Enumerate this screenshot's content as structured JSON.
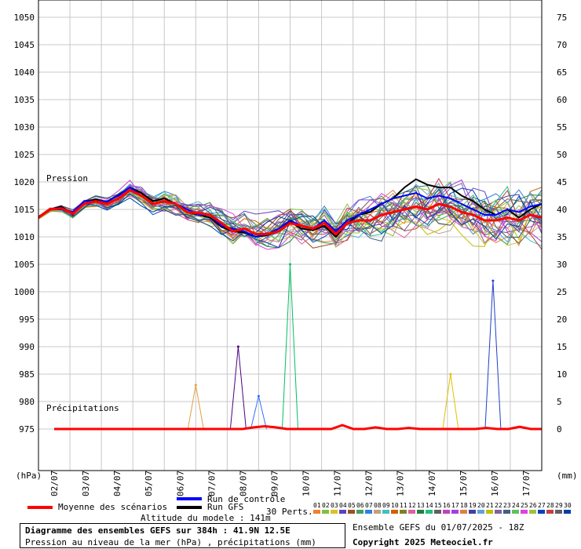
{
  "chart_data": {
    "type": "line",
    "left_axis": {
      "label": "(hPa)",
      "ticks": [
        1050,
        1045,
        1040,
        1035,
        1030,
        1025,
        1020,
        1015,
        1010,
        1005,
        1000,
        995,
        990,
        985,
        980,
        975
      ]
    },
    "right_axis": {
      "label": "(mm)",
      "ticks": [
        75,
        70,
        65,
        60,
        55,
        50,
        45,
        40,
        35,
        30,
        25,
        20,
        15,
        10,
        5,
        0
      ]
    },
    "x_dates": [
      "02/07",
      "03/07",
      "04/07",
      "05/07",
      "06/07",
      "07/07",
      "08/07",
      "09/07",
      "10/07",
      "11/07",
      "12/07",
      "13/07",
      "14/07",
      "15/07",
      "16/07",
      "17/07"
    ],
    "pressure_label": "Pression",
    "precip_label": "Précipitations",
    "mean_pressure": [
      1013.5,
      1015,
      1015.2,
      1014.2,
      1016,
      1016.5,
      1016,
      1017,
      1018.5,
      1017.5,
      1016,
      1016.5,
      1016,
      1014.5,
      1014.3,
      1014,
      1012.5,
      1011,
      1011.5,
      1010.5,
      1010.5,
      1011,
      1012.5,
      1012,
      1011.5,
      1012.5,
      1010.5,
      1012.5,
      1013,
      1013,
      1014,
      1014.5,
      1015,
      1015.5,
      1015,
      1016,
      1015.5,
      1014.5,
      1014,
      1013,
      1013,
      1013.5,
      1013,
      1014,
      1013.5
    ],
    "control_pressure": [
      1013.5,
      1015,
      1015,
      1014.5,
      1016.5,
      1016.5,
      1016.5,
      1017.5,
      1019,
      1017.5,
      1016,
      1016.5,
      1016,
      1015,
      1014,
      1014,
      1012,
      1011.5,
      1011,
      1010,
      1010.5,
      1011.5,
      1013,
      1012,
      1011.5,
      1013,
      1011,
      1013,
      1014,
      1015,
      1016,
      1017,
      1017.5,
      1018,
      1017,
      1017.5,
      1017,
      1016,
      1015,
      1014,
      1014,
      1015,
      1014.5,
      1015.5,
      1016
    ],
    "gfs_pressure": [
      1013.5,
      1015,
      1015.5,
      1014,
      1016.5,
      1016.8,
      1016.4,
      1017.6,
      1019,
      1018,
      1016.5,
      1017,
      1016,
      1014.5,
      1014,
      1013.5,
      1011.8,
      1011,
      1010.8,
      1010,
      1010.3,
      1011,
      1012.8,
      1011.5,
      1011.2,
      1012,
      1010,
      1012.5,
      1014,
      1014.5,
      1016,
      1017,
      1019,
      1020.5,
      1019.5,
      1019,
      1019,
      1017.5,
      1016.5,
      1015,
      1014,
      1015,
      1013.5,
      1015,
      1016
    ],
    "ensemble_ranges": {
      "pressure_min": 1004,
      "pressure_max": 1021
    },
    "precip_mean": [
      0,
      0,
      0,
      0,
      0,
      0,
      0,
      0,
      0,
      0,
      0,
      0,
      0,
      0,
      0,
      0,
      0,
      0,
      0.3,
      0.5,
      0.3,
      0,
      0,
      0,
      0,
      0,
      0.7,
      0,
      0,
      0.3,
      0,
      0,
      0.2,
      0,
      0,
      0,
      0,
      0,
      0,
      0.2,
      0,
      0,
      0.4,
      0,
      0
    ],
    "precip_peaks": [
      {
        "x_day": 6.35,
        "value": 15,
        "color": "#4b0082"
      },
      {
        "x_day": 8.0,
        "value": 30,
        "color": "#00c060"
      },
      {
        "x_day": 14.45,
        "value": 27,
        "color": "#1e40c8"
      },
      {
        "x_day": 13.1,
        "value": 10,
        "color": "#e0c000"
      },
      {
        "x_day": 5.0,
        "value": 8,
        "color": "#e0a040"
      },
      {
        "x_day": 7.0,
        "value": 6,
        "color": "#3070ff"
      }
    ],
    "xlim_days": [
      0,
      16
    ],
    "ylim_hpa": [
      970,
      1052
    ]
  },
  "legend": {
    "mean_label": "Moyenne des scénarios",
    "control_label": "Run de contrôle",
    "gfs_label": "Run GFS",
    "perts_label": "30 Perts.",
    "altitude": "Altitude du modele : 141m",
    "mean_color": "#ff0000",
    "control_color": "#0000ff",
    "gfs_color": "#000000",
    "pert_numbers": [
      "01",
      "02",
      "03",
      "04",
      "05",
      "06",
      "07",
      "08",
      "09",
      "10",
      "11",
      "12",
      "13",
      "14",
      "15",
      "16",
      "17",
      "18",
      "19",
      "20",
      "21",
      "22",
      "23",
      "24",
      "25",
      "26",
      "27",
      "28",
      "29",
      "30"
    ],
    "pert_colors": [
      "#f08030",
      "#80c040",
      "#e0c020",
      "#6040c0",
      "#a05020",
      "#40a060",
      "#3080e0",
      "#c0a080",
      "#40c0c0",
      "#d06000",
      "#808020",
      "#e060a0",
      "#208040",
      "#20c080",
      "#606060",
      "#c040c0",
      "#a040e0",
      "#e08040",
      "#4040a0",
      "#60a0e0",
      "#c0c000",
      "#8060a0",
      "#406080",
      "#60c060",
      "#e040e0",
      "#a0c040",
      "#0040c0",
      "#c04040",
      "#606060",
      "#0040a0"
    ]
  },
  "info": {
    "title": "Diagramme des ensembles GEFS sur 384h : 41.9N 12.5E",
    "subtitle": "Pression au niveau de la mer (hPa) , précipitations (mm)",
    "ensemble": "Ensemble GEFS du 01/07/2025 - 18Z",
    "copyright": "Copyright 2025 Meteociel.fr"
  }
}
